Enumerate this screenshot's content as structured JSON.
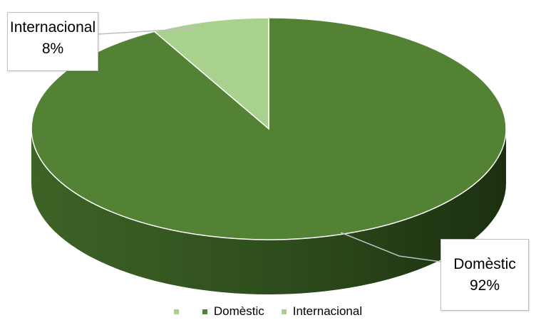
{
  "chart_data": {
    "type": "pie",
    "style": "3d",
    "title": "",
    "slices": [
      {
        "label": "Domèstic",
        "value": 92,
        "value_label": "92%",
        "color": "#548235",
        "side_color": "#375623"
      },
      {
        "label": "Internacional",
        "value": 8,
        "value_label": "8%",
        "color": "#a9d18e",
        "side_color": "#7fa868"
      }
    ],
    "legend": {
      "placement": "bottom",
      "entries": [
        {
          "label": "",
          "color": "#a9d18e"
        },
        {
          "label": "Domèstic",
          "color": "#548235"
        },
        {
          "label": "Internacional",
          "color": "#a9d18e"
        }
      ]
    }
  }
}
